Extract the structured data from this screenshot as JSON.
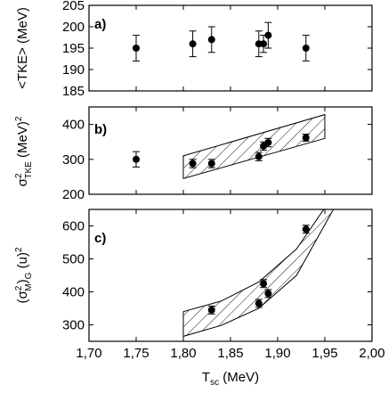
{
  "chart_data": [
    {
      "type": "scatter",
      "panel": "a)",
      "ylabel": "<TKE> (MeV)",
      "xlim": [
        1.7,
        2.0
      ],
      "ylim": [
        185,
        205
      ],
      "yticks": [
        185,
        190,
        195,
        200,
        205
      ],
      "x": [
        1.75,
        1.81,
        1.83,
        1.88,
        1.885,
        1.89,
        1.93
      ],
      "y": [
        195,
        196,
        197,
        196,
        196,
        198,
        195
      ],
      "yerr": [
        3,
        3,
        3,
        3,
        2,
        3,
        3
      ]
    },
    {
      "type": "scatter",
      "panel": "b)",
      "ylabel_main": "σ",
      "ylabel_sup": "2",
      "ylabel_sub": "TKE",
      "ylabel_unit": "(MeV)",
      "ylabel_unit_sup": "2",
      "xlim": [
        1.7,
        2.0
      ],
      "ylim": [
        200,
        450
      ],
      "yticks": [
        200,
        300,
        400
      ],
      "x": [
        1.75,
        1.81,
        1.83,
        1.88,
        1.885,
        1.89,
        1.93
      ],
      "y": [
        300,
        288,
        288,
        308,
        338,
        348,
        362
      ],
      "yerr": [
        22,
        12,
        12,
        12,
        12,
        12,
        10
      ],
      "band": {
        "upper": [
          [
            1.8,
            310
          ],
          [
            1.95,
            428
          ]
        ],
        "lower": [
          [
            1.8,
            245
          ],
          [
            1.95,
            360
          ]
        ]
      }
    },
    {
      "type": "scatter",
      "panel": "c)",
      "ylabel_main": "(σ",
      "ylabel_sup": "2",
      "ylabel_sub": "M",
      "ylabel_close": ")",
      "ylabel_sub2": "G",
      "ylabel_unit": "(u)",
      "ylabel_unit_sup": "2",
      "xlim": [
        1.7,
        2.0
      ],
      "ylim": [
        250,
        650
      ],
      "yticks": [
        300,
        400,
        500,
        600
      ],
      "x": [
        1.83,
        1.88,
        1.885,
        1.89,
        1.93
      ],
      "y": [
        345,
        365,
        425,
        395,
        590
      ],
      "yerr": [
        12,
        12,
        12,
        12,
        12
      ],
      "band": {
        "upper": [
          [
            1.8,
            340
          ],
          [
            1.84,
            372
          ],
          [
            1.88,
            430
          ],
          [
            1.92,
            530
          ],
          [
            1.95,
            655
          ]
        ],
        "lower": [
          [
            1.8,
            265
          ],
          [
            1.84,
            298
          ],
          [
            1.88,
            350
          ],
          [
            1.92,
            450
          ],
          [
            1.96,
            655
          ]
        ]
      },
      "xlabel_main": "T",
      "xlabel_sub": "sc",
      "xlabel_unit": "(MeV)",
      "xticks": [
        "1,70",
        "1,75",
        "1,80",
        "1,85",
        "1,90",
        "1,95",
        "2,00"
      ]
    }
  ]
}
